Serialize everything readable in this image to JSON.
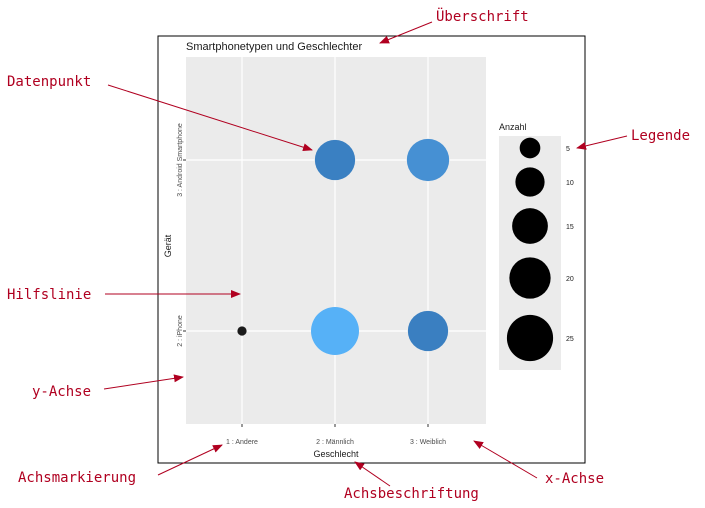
{
  "chart_data": {
    "type": "scatter",
    "title": "Smartphonetypen und Geschlechter",
    "xlabel": "Geschlecht",
    "ylabel": "Gerät",
    "categories": [
      "1 : Andere",
      "2 : Männlich",
      "3 : Weiblich"
    ],
    "y_categories": [
      "2 : iPhone",
      "3 : Android Smartphone"
    ],
    "points": [
      {
        "x": "1 : Andere",
        "y": "2 : iPhone",
        "anzahl": 1,
        "color": "#1a1a1a"
      },
      {
        "x": "2 : Männlich",
        "y": "2 : iPhone",
        "anzahl": 27,
        "color": "#56b1f7"
      },
      {
        "x": "3 : Weiblich",
        "y": "2 : iPhone",
        "anzahl": 19,
        "color": "#3a7fc1"
      },
      {
        "x": "2 : Männlich",
        "y": "3 : Android Smartphone",
        "anzahl": 19,
        "color": "#3a80c2"
      },
      {
        "x": "3 : Weiblich",
        "y": "3 : Android Smartphone",
        "anzahl": 21,
        "color": "#4690d3"
      }
    ],
    "legend": {
      "title": "Anzahl",
      "placement": "right",
      "entries": [
        5,
        10,
        15,
        20,
        25
      ],
      "labels": [
        "5",
        "10",
        "15",
        "20",
        "25"
      ]
    },
    "grid": true,
    "panel_background": "#ebebeb"
  },
  "annotations": {
    "ueberschrift": "Überschrift",
    "datenpunkt": "Datenpunkt",
    "legende": "Legende",
    "hilfslinie": "Hilfslinie",
    "y_achse": "y-Achse",
    "achsmarkierung": "Achsmarkierung",
    "achsbeschriftung": "Achsbeschriftung",
    "x_achse": "x-Achse"
  },
  "colors": {
    "arrow": "#b00020",
    "point_dark": "#1a1a1a"
  }
}
